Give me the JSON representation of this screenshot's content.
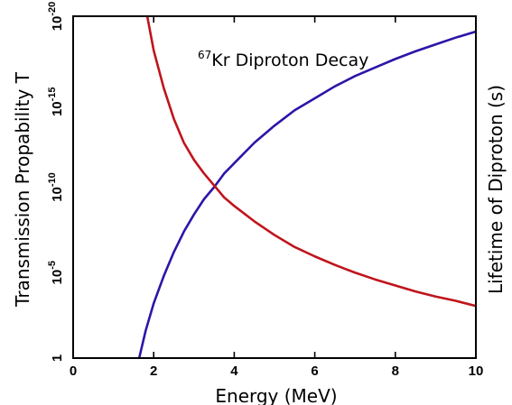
{
  "chart_data": {
    "type": "line",
    "title_superscript": "67",
    "title": "Kr Diproton Decay",
    "xlabel": "Energy (MeV)",
    "ylabel": "Transmission Propability T",
    "ylabel_right": "Lifetime of Diproton (s)",
    "xlim": [
      0,
      10
    ],
    "ylim_log10": [
      -20,
      0
    ],
    "y_scale": "log",
    "grid": false,
    "x_ticks": [
      0,
      2,
      4,
      6,
      8,
      10
    ],
    "x_tick_labels": [
      "0",
      "2",
      "4",
      "6",
      "8",
      "10"
    ],
    "y_ticks_log10": [
      0,
      -5,
      -10,
      -15,
      -20
    ],
    "y_tick_base": [
      "1",
      "10",
      "10",
      "10",
      "10"
    ],
    "y_tick_exponent": [
      "",
      "-5",
      "-10",
      "-15",
      "-20"
    ],
    "series": [
      {
        "color": "#2f14a8",
        "x": [
          1.64,
          1.8,
          2.0,
          2.25,
          2.5,
          2.75,
          3.0,
          3.25,
          3.5,
          3.75,
          4.0,
          4.5,
          5.0,
          5.5,
          6.0,
          6.5,
          7.0,
          7.5,
          8.0,
          8.5,
          9.0,
          9.5,
          10.0
        ],
        "y_log10": [
          0,
          -1.6,
          -3.2,
          -4.8,
          -6.2,
          -7.4,
          -8.4,
          -9.3,
          -10.0,
          -10.8,
          -11.4,
          -12.6,
          -13.6,
          -14.5,
          -15.2,
          -15.9,
          -16.5,
          -17.0,
          -17.5,
          -17.95,
          -18.35,
          -18.75,
          -19.1
        ]
      },
      {
        "color": "#c0141c",
        "x": [
          1.84,
          2.0,
          2.25,
          2.5,
          2.75,
          3.0,
          3.25,
          3.5,
          3.75,
          4.0,
          4.5,
          5.0,
          5.5,
          6.0,
          6.5,
          7.0,
          7.5,
          8.0,
          8.5,
          9.0,
          9.5,
          10.0
        ],
        "y_log10": [
          -20,
          -18.0,
          -15.8,
          -14.0,
          -12.6,
          -11.6,
          -10.8,
          -10.1,
          -9.4,
          -8.9,
          -8.0,
          -7.2,
          -6.5,
          -5.95,
          -5.45,
          -5.0,
          -4.6,
          -4.25,
          -3.9,
          -3.6,
          -3.35,
          -3.05
        ]
      }
    ]
  }
}
